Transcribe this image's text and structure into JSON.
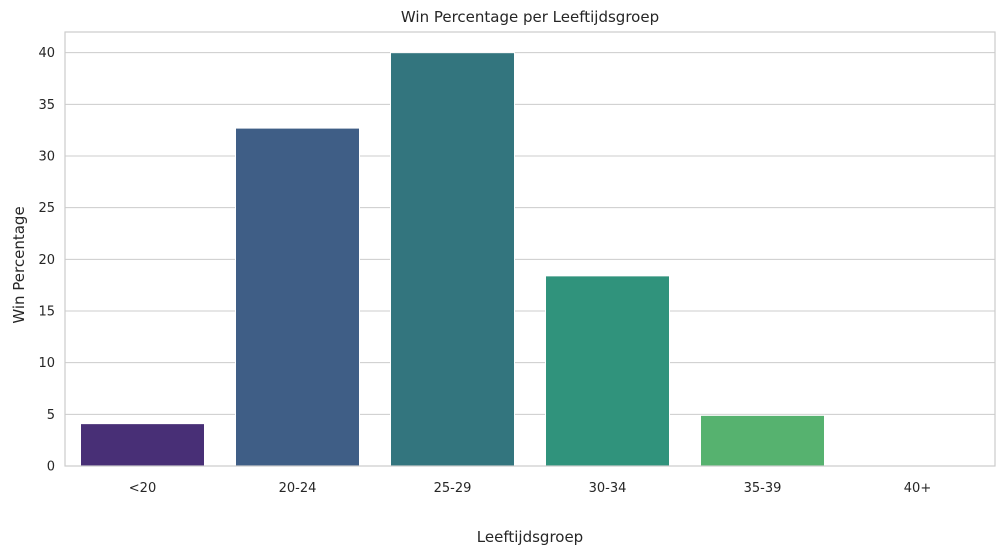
{
  "chart_data": {
    "type": "bar",
    "title": "Win Percentage per Leeftijdsgroep",
    "xlabel": "Leeftijdsgroep",
    "ylabel": "Win Percentage",
    "categories": [
      "<20",
      "20-24",
      "25-29",
      "30-34",
      "35-39",
      "40+"
    ],
    "values": [
      4.1,
      32.7,
      40.0,
      18.4,
      4.9,
      0
    ],
    "colors": [
      "#482f76",
      "#3f5e86",
      "#33757e",
      "#30937c",
      "#56b26f",
      "#a6d44d"
    ],
    "ylim": [
      0,
      42
    ],
    "yticks": [
      0,
      5,
      10,
      15,
      20,
      25,
      30,
      35,
      40
    ],
    "grid": true,
    "legend": "none"
  }
}
